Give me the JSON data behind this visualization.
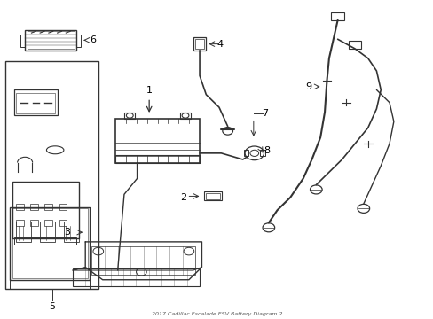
{
  "title": "2017 Cadillac Escalade ESV Battery Diagram 2",
  "background_color": "#ffffff",
  "line_color": "#333333",
  "label_color": "#000000",
  "figsize": [
    4.89,
    3.6
  ],
  "dpi": 100
}
